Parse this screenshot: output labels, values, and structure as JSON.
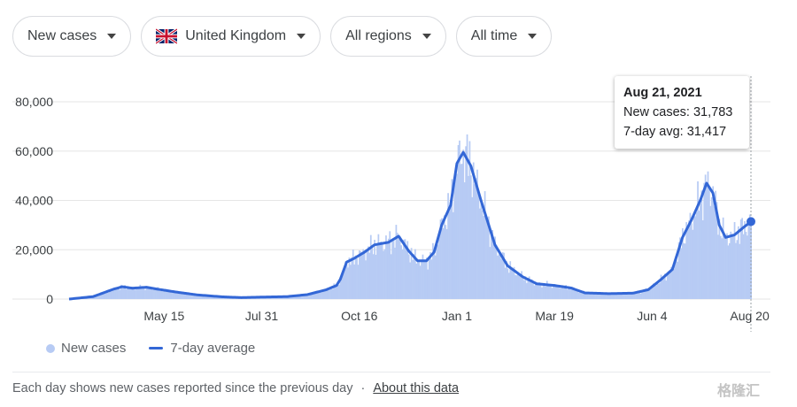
{
  "filters": {
    "metric_label": "New cases",
    "country_label": "United Kingdom",
    "region_label": "All regions",
    "time_label": "All time"
  },
  "tooltip": {
    "date": "Aug 21, 2021",
    "new_cases": "New cases: 31,783",
    "avg": "7-day avg: 31,417"
  },
  "legend": {
    "new_cases": "New cases",
    "avg": "7-day average"
  },
  "footer": {
    "note": "Each day shows new cases reported since the previous day",
    "separator": "·",
    "link": "About this data"
  },
  "watermark": "格隆汇",
  "colors": {
    "bars": "#b7cbf4",
    "line": "#3367d6",
    "grid": "#e6e6e6"
  },
  "chart_data": {
    "type": "area",
    "x_start": "2020-03-01",
    "x_end": "2021-08-21",
    "ylim": [
      0,
      80000
    ],
    "y_ticks": [
      0,
      20000,
      40000,
      60000,
      80000
    ],
    "y_tick_labels": [
      "0",
      "20,000",
      "40,000",
      "60,000",
      "80,000"
    ],
    "x_ticks": [
      "2020-05-15",
      "2020-07-31",
      "2020-10-16",
      "2021-01-01",
      "2021-03-19",
      "2021-06-04",
      "2021-08-20"
    ],
    "x_tick_labels": [
      "May 15",
      "Jul 31",
      "Oct 16",
      "Jan 1",
      "Mar 19",
      "Jun 4",
      "Aug 20"
    ],
    "grid": true,
    "series": [
      {
        "name": "7-day average",
        "points": [
          [
            "2020-03-01",
            0
          ],
          [
            "2020-03-20",
            1000
          ],
          [
            "2020-04-05",
            4000
          ],
          [
            "2020-04-12",
            5000
          ],
          [
            "2020-04-20",
            4400
          ],
          [
            "2020-05-01",
            4800
          ],
          [
            "2020-05-10",
            4000
          ],
          [
            "2020-05-25",
            2800
          ],
          [
            "2020-06-10",
            1700
          ],
          [
            "2020-06-30",
            900
          ],
          [
            "2020-07-15",
            600
          ],
          [
            "2020-07-31",
            800
          ],
          [
            "2020-08-20",
            1000
          ],
          [
            "2020-09-05",
            1800
          ],
          [
            "2020-09-20",
            3800
          ],
          [
            "2020-09-28",
            5500
          ],
          [
            "2020-10-01",
            8000
          ],
          [
            "2020-10-06",
            15000
          ],
          [
            "2020-10-12",
            16500
          ],
          [
            "2020-10-20",
            19000
          ],
          [
            "2020-10-28",
            22000
          ],
          [
            "2020-11-08",
            23000
          ],
          [
            "2020-11-16",
            25500
          ],
          [
            "2020-11-24",
            19500
          ],
          [
            "2020-12-01",
            15500
          ],
          [
            "2020-12-08",
            15500
          ],
          [
            "2020-12-14",
            19000
          ],
          [
            "2020-12-20",
            30000
          ],
          [
            "2020-12-27",
            38000
          ],
          [
            "2021-01-01",
            55000
          ],
          [
            "2021-01-06",
            59500
          ],
          [
            "2021-01-12",
            54000
          ],
          [
            "2021-01-20",
            40000
          ],
          [
            "2021-01-31",
            22000
          ],
          [
            "2021-02-10",
            13500
          ],
          [
            "2021-02-22",
            9000
          ],
          [
            "2021-03-05",
            6200
          ],
          [
            "2021-03-19",
            5500
          ],
          [
            "2021-04-01",
            4500
          ],
          [
            "2021-04-12",
            2500
          ],
          [
            "2021-05-01",
            2200
          ],
          [
            "2021-05-20",
            2400
          ],
          [
            "2021-06-01",
            3800
          ],
          [
            "2021-06-10",
            7500
          ],
          [
            "2021-06-20",
            12000
          ],
          [
            "2021-06-28",
            25000
          ],
          [
            "2021-07-05",
            32000
          ],
          [
            "2021-07-12",
            40000
          ],
          [
            "2021-07-17",
            47000
          ],
          [
            "2021-07-22",
            43000
          ],
          [
            "2021-07-27",
            30000
          ],
          [
            "2021-08-01",
            25000
          ],
          [
            "2021-08-08",
            26000
          ],
          [
            "2021-08-15",
            29000
          ],
          [
            "2021-08-21",
            31417
          ]
        ]
      }
    ],
    "annotation": {
      "date": "2021-08-21",
      "value": 31417
    }
  }
}
